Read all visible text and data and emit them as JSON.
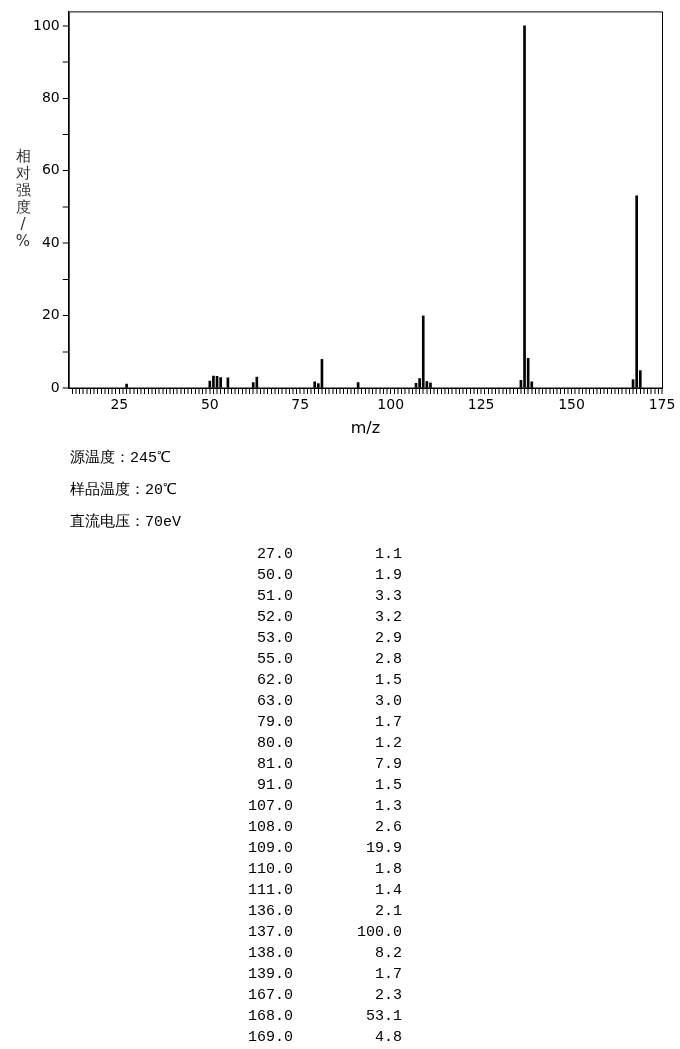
{
  "chart_data": [
    {
      "type": "bar",
      "xlabel": "m/z",
      "ylabel": "相对强度/%",
      "x": [
        27,
        50,
        51,
        52,
        53,
        55,
        62,
        63,
        79,
        80,
        81,
        91,
        107,
        108,
        109,
        110,
        111,
        136,
        137,
        138,
        139,
        167,
        168,
        169
      ],
      "values": [
        1.1,
        1.9,
        3.3,
        3.2,
        2.9,
        2.8,
        1.5,
        3.0,
        1.7,
        1.2,
        7.9,
        1.5,
        1.3,
        2.6,
        19.9,
        1.8,
        1.4,
        2.1,
        100.0,
        8.2,
        1.7,
        2.3,
        53.1,
        4.8
      ],
      "color": "#000000",
      "xlim": [
        11,
        175
      ],
      "xticks": [
        {
          "value": 12,
          "label": null
        },
        {
          "value": 13,
          "label": null
        },
        {
          "value": 14,
          "label": null
        },
        {
          "value": 15,
          "label": null
        },
        {
          "value": 16,
          "label": null
        },
        {
          "value": 17,
          "label": null
        },
        {
          "value": 18,
          "label": null
        },
        {
          "value": 19,
          "label": null
        },
        {
          "value": 20,
          "label": null
        },
        {
          "value": 21,
          "label": null
        },
        {
          "value": 22,
          "label": null
        },
        {
          "value": 23,
          "label": null
        },
        {
          "value": 24,
          "label": null
        },
        25,
        {
          "value": 26,
          "label": null
        },
        {
          "value": 27,
          "label": null
        },
        {
          "value": 28,
          "label": null
        },
        {
          "value": 29,
          "label": null
        },
        {
          "value": 30,
          "label": null
        },
        {
          "value": 31,
          "label": null
        },
        {
          "value": 32,
          "label": null
        },
        {
          "value": 33,
          "label": null
        },
        {
          "value": 34,
          "label": null
        },
        {
          "value": 35,
          "label": null
        },
        {
          "value": 36,
          "label": null
        },
        {
          "value": 37,
          "label": null
        },
        {
          "value": 38,
          "label": null
        },
        {
          "value": 39,
          "label": null
        },
        {
          "value": 40,
          "label": null
        },
        {
          "value": 41,
          "label": null
        },
        {
          "value": 42,
          "label": null
        },
        {
          "value": 43,
          "label": null
        },
        {
          "value": 44,
          "label": null
        },
        {
          "value": 45,
          "label": null
        },
        {
          "value": 46,
          "label": null
        },
        {
          "value": 47,
          "label": null
        },
        {
          "value": 48,
          "label": null
        },
        {
          "value": 49,
          "label": null
        },
        50,
        {
          "value": 51,
          "label": null
        },
        {
          "value": 52,
          "label": null
        },
        {
          "value": 53,
          "label": null
        },
        {
          "value": 54,
          "label": null
        },
        {
          "value": 55,
          "label": null
        },
        {
          "value": 56,
          "label": null
        },
        {
          "value": 57,
          "label": null
        },
        {
          "value": 58,
          "label": null
        },
        {
          "value": 59,
          "label": null
        },
        {
          "value": 60,
          "label": null
        },
        {
          "value": 61,
          "label": null
        },
        {
          "value": 62,
          "label": null
        },
        {
          "value": 63,
          "label": null
        },
        {
          "value": 64,
          "label": null
        },
        {
          "value": 65,
          "label": null
        },
        {
          "value": 66,
          "label": null
        },
        {
          "value": 67,
          "label": null
        },
        {
          "value": 68,
          "label": null
        },
        {
          "value": 69,
          "label": null
        },
        {
          "value": 70,
          "label": null
        },
        {
          "value": 71,
          "label": null
        },
        {
          "value": 72,
          "label": null
        },
        {
          "value": 73,
          "label": null
        },
        {
          "value": 74,
          "label": null
        },
        75,
        {
          "value": 76,
          "label": null
        },
        {
          "value": 77,
          "label": null
        },
        {
          "value": 78,
          "label": null
        },
        {
          "value": 79,
          "label": null
        },
        {
          "value": 80,
          "label": null
        },
        {
          "value": 81,
          "label": null
        },
        {
          "value": 82,
          "label": null
        },
        {
          "value": 83,
          "label": null
        },
        {
          "value": 84,
          "label": null
        },
        {
          "value": 85,
          "label": null
        },
        {
          "value": 86,
          "label": null
        },
        {
          "value": 87,
          "label": null
        },
        {
          "value": 88,
          "label": null
        },
        {
          "value": 89,
          "label": null
        },
        {
          "value": 90,
          "label": null
        },
        {
          "value": 91,
          "label": null
        },
        {
          "value": 92,
          "label": null
        },
        {
          "value": 93,
          "label": null
        },
        {
          "value": 94,
          "label": null
        },
        {
          "value": 95,
          "label": null
        },
        {
          "value": 96,
          "label": null
        },
        {
          "value": 97,
          "label": null
        },
        {
          "value": 98,
          "label": null
        },
        {
          "value": 99,
          "label": null
        },
        100,
        {
          "value": 101,
          "label": null
        },
        {
          "value": 102,
          "label": null
        },
        {
          "value": 103,
          "label": null
        },
        {
          "value": 104,
          "label": null
        },
        {
          "value": 105,
          "label": null
        },
        {
          "value": 106,
          "label": null
        },
        {
          "value": 107,
          "label": null
        },
        {
          "value": 108,
          "label": null
        },
        {
          "value": 109,
          "label": null
        },
        {
          "value": 110,
          "label": null
        },
        {
          "value": 111,
          "label": null
        },
        {
          "value": 112,
          "label": null
        },
        {
          "value": 113,
          "label": null
        },
        {
          "value": 114,
          "label": null
        },
        {
          "value": 115,
          "label": null
        },
        {
          "value": 116,
          "label": null
        },
        {
          "value": 117,
          "label": null
        },
        {
          "value": 118,
          "label": null
        },
        {
          "value": 119,
          "label": null
        },
        {
          "value": 120,
          "label": null
        },
        {
          "value": 121,
          "label": null
        },
        {
          "value": 122,
          "label": null
        },
        {
          "value": 123,
          "label": null
        },
        {
          "value": 124,
          "label": null
        },
        125,
        {
          "value": 126,
          "label": null
        },
        {
          "value": 127,
          "label": null
        },
        {
          "value": 128,
          "label": null
        },
        {
          "value": 129,
          "label": null
        },
        {
          "value": 130,
          "label": null
        },
        {
          "value": 131,
          "label": null
        },
        {
          "value": 132,
          "label": null
        },
        {
          "value": 133,
          "label": null
        },
        {
          "value": 134,
          "label": null
        },
        {
          "value": 135,
          "label": null
        },
        {
          "value": 136,
          "label": null
        },
        {
          "value": 137,
          "label": null
        },
        {
          "value": 138,
          "label": null
        },
        {
          "value": 139,
          "label": null
        },
        {
          "value": 140,
          "label": null
        },
        {
          "value": 141,
          "label": null
        },
        {
          "value": 142,
          "label": null
        },
        {
          "value": 143,
          "label": null
        },
        {
          "value": 144,
          "label": null
        },
        {
          "value": 145,
          "label": null
        },
        {
          "value": 146,
          "label": null
        },
        {
          "value": 147,
          "label": null
        },
        {
          "value": 148,
          "label": null
        },
        {
          "value": 149,
          "label": null
        },
        150,
        {
          "value": 151,
          "label": null
        },
        {
          "value": 152,
          "label": null
        },
        {
          "value": 153,
          "label": null
        },
        {
          "value": 154,
          "label": null
        },
        {
          "value": 155,
          "label": null
        },
        {
          "value": 156,
          "label": null
        },
        {
          "value": 157,
          "label": null
        },
        {
          "value": 158,
          "label": null
        },
        {
          "value": 159,
          "label": null
        },
        {
          "value": 160,
          "label": null
        },
        {
          "value": 161,
          "label": null
        },
        {
          "value": 162,
          "label": null
        },
        {
          "value": 163,
          "label": null
        },
        {
          "value": 164,
          "label": null
        },
        {
          "value": 165,
          "label": null
        },
        {
          "value": 166,
          "label": null
        },
        {
          "value": 167,
          "label": null
        },
        {
          "value": 168,
          "label": null
        },
        {
          "value": 169,
          "label": null
        },
        {
          "value": 170,
          "label": null
        },
        {
          "value": 171,
          "label": null
        },
        {
          "value": 172,
          "label": null
        },
        {
          "value": 173,
          "label": null
        },
        {
          "value": 174,
          "label": null
        },
        175
      ],
      "ylim": [
        0,
        104
      ],
      "yticks": [
        0,
        {
          "value": 10,
          "label": null
        },
        20,
        {
          "value": 30,
          "label": null
        },
        40,
        {
          "value": 50,
          "label": null
        },
        60,
        {
          "value": 70,
          "label": null
        },
        80,
        {
          "value": 90,
          "label": null
        },
        100
      ],
      "grid": false,
      "legend": false,
      "annotations": [
        "源温度：245℃",
        "样品温度：20℃",
        "直流电压：70eV"
      ]
    },
    {
      "type": "other",
      "categories": [
        "27.0",
        "50.0",
        "51.0",
        "52.0",
        "53.0",
        "55.0",
        "62.0",
        "63.0",
        "79.0",
        "80.0",
        "81.0",
        "91.0",
        "107.0",
        "108.0",
        "109.0",
        "110.0",
        "111.0",
        "136.0",
        "137.0",
        "138.0",
        "139.0",
        "167.0",
        "168.0",
        "169.0"
      ],
      "value_labels": [
        "1.1",
        "1.9",
        "3.3",
        "3.2",
        "2.9",
        "2.8",
        "1.5",
        "3.0",
        "1.7",
        "1.2",
        "7.9",
        "1.5",
        "1.3",
        "2.6",
        "19.9",
        "1.8",
        "1.4",
        "2.1",
        "100.0",
        "8.2",
        "1.7",
        "2.3",
        "53.1",
        "4.8"
      ]
    }
  ]
}
